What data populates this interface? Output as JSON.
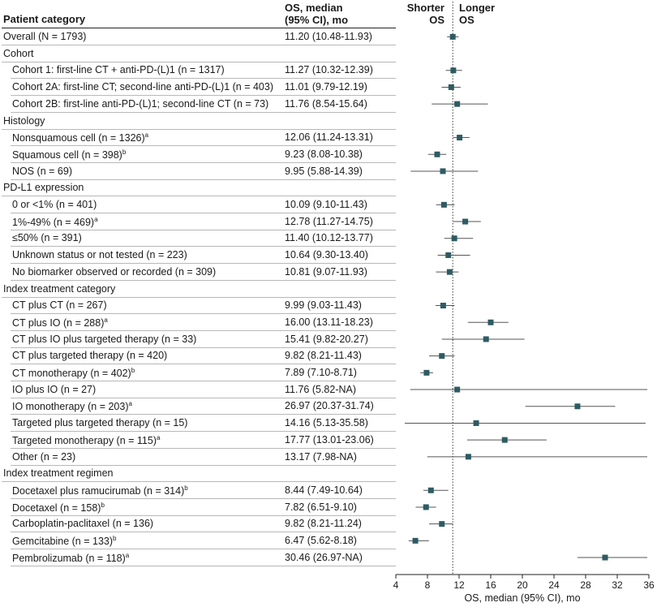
{
  "header": {
    "category": "Patient category",
    "os_line1": "OS, median",
    "os_line2": "(95% CI), mo",
    "shorter_line1": "Shorter",
    "shorter_line2": "OS",
    "longer_line1": "Longer",
    "longer_line2": "OS"
  },
  "rows": [
    {
      "label": "Overall (N = 1793)",
      "sup": "",
      "ci": "11.20 (10.48-11.93)",
      "kind": "overall"
    },
    {
      "label": "Cohort",
      "sup": "",
      "ci": "",
      "kind": "section"
    },
    {
      "label": "Cohort 1: first-line CT + anti-PD-(L)1 (n = 1317)",
      "sup": "",
      "ci": "11.27 (10.32-12.39)",
      "kind": "sub"
    },
    {
      "label": "Cohort 2A: first-line CT; second-line anti-PD-(L)1 (n = 403)",
      "sup": "",
      "ci": "11.01 (9.79-12.19)",
      "kind": "sub"
    },
    {
      "label": "Cohort 2B: first-line anti-PD-(L)1; second-line CT (n = 73)",
      "sup": "",
      "ci": "11.76 (8.54-15.64)",
      "kind": "sub"
    },
    {
      "label": "Histology",
      "sup": "",
      "ci": "",
      "kind": "section"
    },
    {
      "label": "Nonsquamous cell (n = 1326)",
      "sup": "a",
      "ci": "12.06 (11.24-13.31)",
      "kind": "sub"
    },
    {
      "label": "Squamous cell (n = 398)",
      "sup": "b",
      "ci": "9.23 (8.08-10.38)",
      "kind": "sub"
    },
    {
      "label": "NOS (n = 69)",
      "sup": "",
      "ci": "9.95 (5.88-14.39)",
      "kind": "sub"
    },
    {
      "label": "PD-L1 expression",
      "sup": "",
      "ci": "",
      "kind": "section"
    },
    {
      "label": "0 or <1% (n = 401)",
      "sup": "",
      "ci": "10.09 (9.10-11.43)",
      "kind": "sub"
    },
    {
      "label": "1%-49% (n = 469)",
      "sup": "a",
      "ci": "12.78 (11.27-14.75)",
      "kind": "sub"
    },
    {
      "label": "≤50% (n = 391)",
      "sup": "",
      "ci": "11.40 (10.12-13.77)",
      "kind": "sub"
    },
    {
      "label": "Unknown status or not tested (n = 223)",
      "sup": "",
      "ci": "10.64 (9.30-13.40)",
      "kind": "sub"
    },
    {
      "label": "No biomarker observed or recorded (n = 309)",
      "sup": "",
      "ci": "10.81 (9.07-11.93)",
      "kind": "sub"
    },
    {
      "label": "Index treatment category",
      "sup": "",
      "ci": "",
      "kind": "section"
    },
    {
      "label": "CT plus CT (n = 267)",
      "sup": "",
      "ci": "9.99 (9.03-11.43)",
      "kind": "sub"
    },
    {
      "label": "CT plus IO (n = 288)",
      "sup": "a",
      "ci": "16.00 (13.11-18.23)",
      "kind": "sub"
    },
    {
      "label": "CT plus IO plus targeted therapy (n = 33)",
      "sup": "",
      "ci": "15.41 (9.82-20.27)",
      "kind": "sub"
    },
    {
      "label": "CT plus targeted therapy (n = 420)",
      "sup": "",
      "ci": "9.82 (8.21-11.43)",
      "kind": "sub"
    },
    {
      "label": "CT monotherapy (n = 402)",
      "sup": "b",
      "ci": "7.89 (7.10-8.71)",
      "kind": "sub"
    },
    {
      "label": "IO plus IO (n = 27)",
      "sup": "",
      "ci": "11.76 (5.82-NA)",
      "kind": "sub"
    },
    {
      "label": "IO monotherapy (n = 203)",
      "sup": "a",
      "ci": "26.97 (20.37-31.74)",
      "kind": "sub"
    },
    {
      "label": "Targeted plus targeted therapy (n = 15)",
      "sup": "",
      "ci": "14.16 (5.13-35.58)",
      "kind": "sub"
    },
    {
      "label": "Targeted monotherapy (n = 115)",
      "sup": "a",
      "ci": "17.77 (13.01-23.06)",
      "kind": "sub"
    },
    {
      "label": "Other (n = 23)",
      "sup": "",
      "ci": "13.17 (7.98-NA)",
      "kind": "sub"
    },
    {
      "label": "Index treatment regimen",
      "sup": "",
      "ci": "",
      "kind": "section"
    },
    {
      "label": "Docetaxel plus ramucirumab (n = 314)",
      "sup": "b",
      "ci": "8.44 (7.49-10.64)",
      "kind": "sub"
    },
    {
      "label": "Docetaxel (n = 158)",
      "sup": "b",
      "ci": "7.82 (6.51-9.10)",
      "kind": "sub"
    },
    {
      "label": "Carboplatin-paclitaxel (n = 136)",
      "sup": "",
      "ci": "9.82 (8.21-11.24)",
      "kind": "sub"
    },
    {
      "label": "Gemcitabine (n = 133)",
      "sup": "b",
      "ci": "6.47 (5.62-8.18)",
      "kind": "sub"
    },
    {
      "label": "Pembrolizumab (n = 118)",
      "sup": "a",
      "ci": "30.46 (26.97-NA)",
      "kind": "sub"
    }
  ],
  "chart_data": {
    "type": "forest",
    "xlabel": "OS, median (95% CI), mo",
    "xlim": [
      4,
      36
    ],
    "xticks": [
      4,
      8,
      12,
      16,
      20,
      24,
      28,
      32,
      36
    ],
    "reference_line": 11.2,
    "marker_color": "#2e5b63",
    "line_color": "#555555",
    "points": [
      {
        "row": 0,
        "median": 11.2,
        "lower": 10.48,
        "upper": 11.93
      },
      {
        "row": 2,
        "median": 11.27,
        "lower": 10.32,
        "upper": 12.39
      },
      {
        "row": 3,
        "median": 11.01,
        "lower": 9.79,
        "upper": 12.19
      },
      {
        "row": 4,
        "median": 11.76,
        "lower": 8.54,
        "upper": 15.64
      },
      {
        "row": 6,
        "median": 12.06,
        "lower": 11.24,
        "upper": 13.31
      },
      {
        "row": 7,
        "median": 9.23,
        "lower": 8.08,
        "upper": 10.38
      },
      {
        "row": 8,
        "median": 9.95,
        "lower": 5.88,
        "upper": 14.39
      },
      {
        "row": 10,
        "median": 10.09,
        "lower": 9.1,
        "upper": 11.43
      },
      {
        "row": 11,
        "median": 12.78,
        "lower": 11.27,
        "upper": 14.75
      },
      {
        "row": 12,
        "median": 11.4,
        "lower": 10.12,
        "upper": 13.77
      },
      {
        "row": 13,
        "median": 10.64,
        "lower": 9.3,
        "upper": 13.4
      },
      {
        "row": 14,
        "median": 10.81,
        "lower": 9.07,
        "upper": 11.93
      },
      {
        "row": 16,
        "median": 9.99,
        "lower": 9.03,
        "upper": 11.43
      },
      {
        "row": 17,
        "median": 16.0,
        "lower": 13.11,
        "upper": 18.23
      },
      {
        "row": 18,
        "median": 15.41,
        "lower": 9.82,
        "upper": 20.27
      },
      {
        "row": 19,
        "median": 9.82,
        "lower": 8.21,
        "upper": 11.43
      },
      {
        "row": 20,
        "median": 7.89,
        "lower": 7.1,
        "upper": 8.71
      },
      {
        "row": 21,
        "median": 11.76,
        "lower": 5.82,
        "upper": null
      },
      {
        "row": 22,
        "median": 26.97,
        "lower": 20.37,
        "upper": 31.74
      },
      {
        "row": 23,
        "median": 14.16,
        "lower": 5.13,
        "upper": 35.58
      },
      {
        "row": 24,
        "median": 17.77,
        "lower": 13.01,
        "upper": 23.06
      },
      {
        "row": 25,
        "median": 13.17,
        "lower": 7.98,
        "upper": null
      },
      {
        "row": 27,
        "median": 8.44,
        "lower": 7.49,
        "upper": 10.64
      },
      {
        "row": 28,
        "median": 7.82,
        "lower": 6.51,
        "upper": 9.1
      },
      {
        "row": 29,
        "median": 9.82,
        "lower": 8.21,
        "upper": 11.24
      },
      {
        "row": 30,
        "median": 6.47,
        "lower": 5.62,
        "upper": 8.18
      },
      {
        "row": 31,
        "median": 30.46,
        "lower": 26.97,
        "upper": null
      }
    ]
  }
}
